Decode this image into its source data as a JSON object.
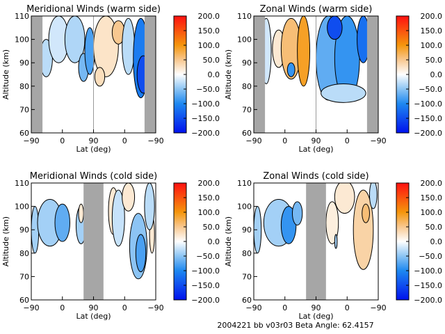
{
  "footer": {
    "text": "2004221 bb v03r03   Beta Angle: 62.4157"
  },
  "colorbar": {
    "ticks": [
      "200.0",
      "150.0",
      "100.0",
      "50.0",
      "0.0",
      "−50.0",
      "−100.0",
      "−150.0",
      "−200.0"
    ],
    "range": [
      -200,
      200
    ],
    "stops": [
      {
        "v": -200,
        "color": "#0011ee"
      },
      {
        "v": -100,
        "color": "#1e88f0"
      },
      {
        "v": -50,
        "color": "#8cc4f4"
      },
      {
        "v": 0,
        "color": "#ffffff"
      },
      {
        "v": 50,
        "color": "#f8c890"
      },
      {
        "v": 100,
        "color": "#f5960c"
      },
      {
        "v": 200,
        "color": "#ff1010"
      }
    ]
  },
  "chart_data": [
    {
      "type": "heatmap",
      "title": "Meridional Winds (warm side)",
      "xlabel": "Lat (deg)",
      "ylabel": "Altitude (km)",
      "xticks": [
        "−90",
        "0",
        "90",
        "0",
        "−90"
      ],
      "yticks": [
        "110",
        "100",
        "90",
        "80",
        "70",
        "60"
      ],
      "ylim": [
        60,
        110
      ],
      "colorbar_range": [
        -200,
        200
      ],
      "no_data_lat_bands": [
        "left edge",
        "right edge"
      ],
      "features": [
        {
          "region": "left half 90-110 km",
          "value": -40
        },
        {
          "region": "right half near 90 lat",
          "value": 40
        },
        {
          "region": "right half south high-lat 75-110 km",
          "value": -110
        }
      ]
    },
    {
      "type": "heatmap",
      "title": "Zonal Winds (warm side)",
      "xlabel": "Lat (deg)",
      "ylabel": "Altitude (km)",
      "xticks": [
        "−90",
        "0",
        "90",
        "0",
        "−90"
      ],
      "yticks": [
        "110",
        "100",
        "90",
        "80",
        "70",
        "60"
      ],
      "ylim": [
        60,
        110
      ],
      "colorbar_range": [
        -200,
        200
      ],
      "no_data_lat_bands": [
        "left edge",
        "right edge"
      ],
      "features": [
        {
          "region": "left half northern lat 80-110 km",
          "value": 70
        },
        {
          "region": "right half 73-110 km",
          "value": -100
        }
      ]
    },
    {
      "type": "heatmap",
      "title": "Meridional Winds (cold side)",
      "xlabel": "Lat (deg)",
      "ylabel": "Altitude (km)",
      "xticks": [
        "−90",
        "0",
        "90",
        "0",
        "−90"
      ],
      "yticks": [
        "110",
        "100",
        "90",
        "80",
        "70",
        "60"
      ],
      "ylim": [
        60,
        110
      ],
      "colorbar_range": [
        -200,
        200
      ],
      "no_data_lat_bands": [
        "center"
      ],
      "features": [
        {
          "region": "left half 83-103 km",
          "value": -60
        },
        {
          "region": "right half 68-110 km",
          "value": -50
        }
      ]
    },
    {
      "type": "heatmap",
      "title": "Zonal Winds (cold side)",
      "xlabel": "Lat (deg)",
      "ylabel": "Altitude (km)",
      "xticks": [
        "−90",
        "0",
        "90",
        "0",
        "−90"
      ],
      "yticks": [
        "110",
        "100",
        "90",
        "80",
        "70",
        "60"
      ],
      "ylim": [
        60,
        110
      ],
      "colorbar_range": [
        -200,
        200
      ],
      "no_data_lat_bands": [
        "center"
      ],
      "features": [
        {
          "region": "left half 83-103 km",
          "value": -70
        },
        {
          "region": "right half 72-110 km",
          "value": 40
        }
      ]
    }
  ]
}
